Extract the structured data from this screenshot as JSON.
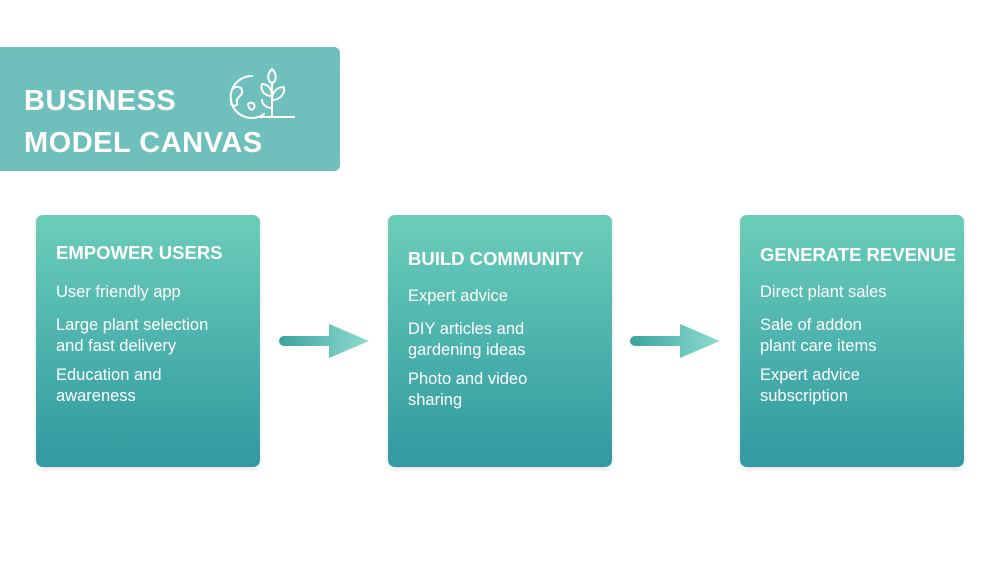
{
  "title": {
    "line1": "BUSINESS",
    "line2": "MODEL CANVAS",
    "icon": "globe-plant-icon"
  },
  "cards": [
    {
      "title": "EMPOWER USERS",
      "items": [
        "User friendly app",
        "Large plant selection and fast delivery",
        "Education and awareness"
      ]
    },
    {
      "title": "BUILD COMMUNITY",
      "items": [
        "Expert advice",
        "DIY articles and gardening ideas",
        "Photo and video sharing"
      ]
    },
    {
      "title": "GENERATE REVENUE",
      "items": [
        "Direct plant sales",
        "Sale of addon plant care items",
        "Expert advice subscription"
      ]
    }
  ],
  "colors": {
    "banner": "#6fc0bc",
    "card_top": "#6cceb9",
    "card_bottom": "#3199a0",
    "arrow_start": "#3aa39f",
    "arrow_end": "#8fdcd0"
  },
  "icons": {
    "arrow": "right-arrow-icon"
  }
}
